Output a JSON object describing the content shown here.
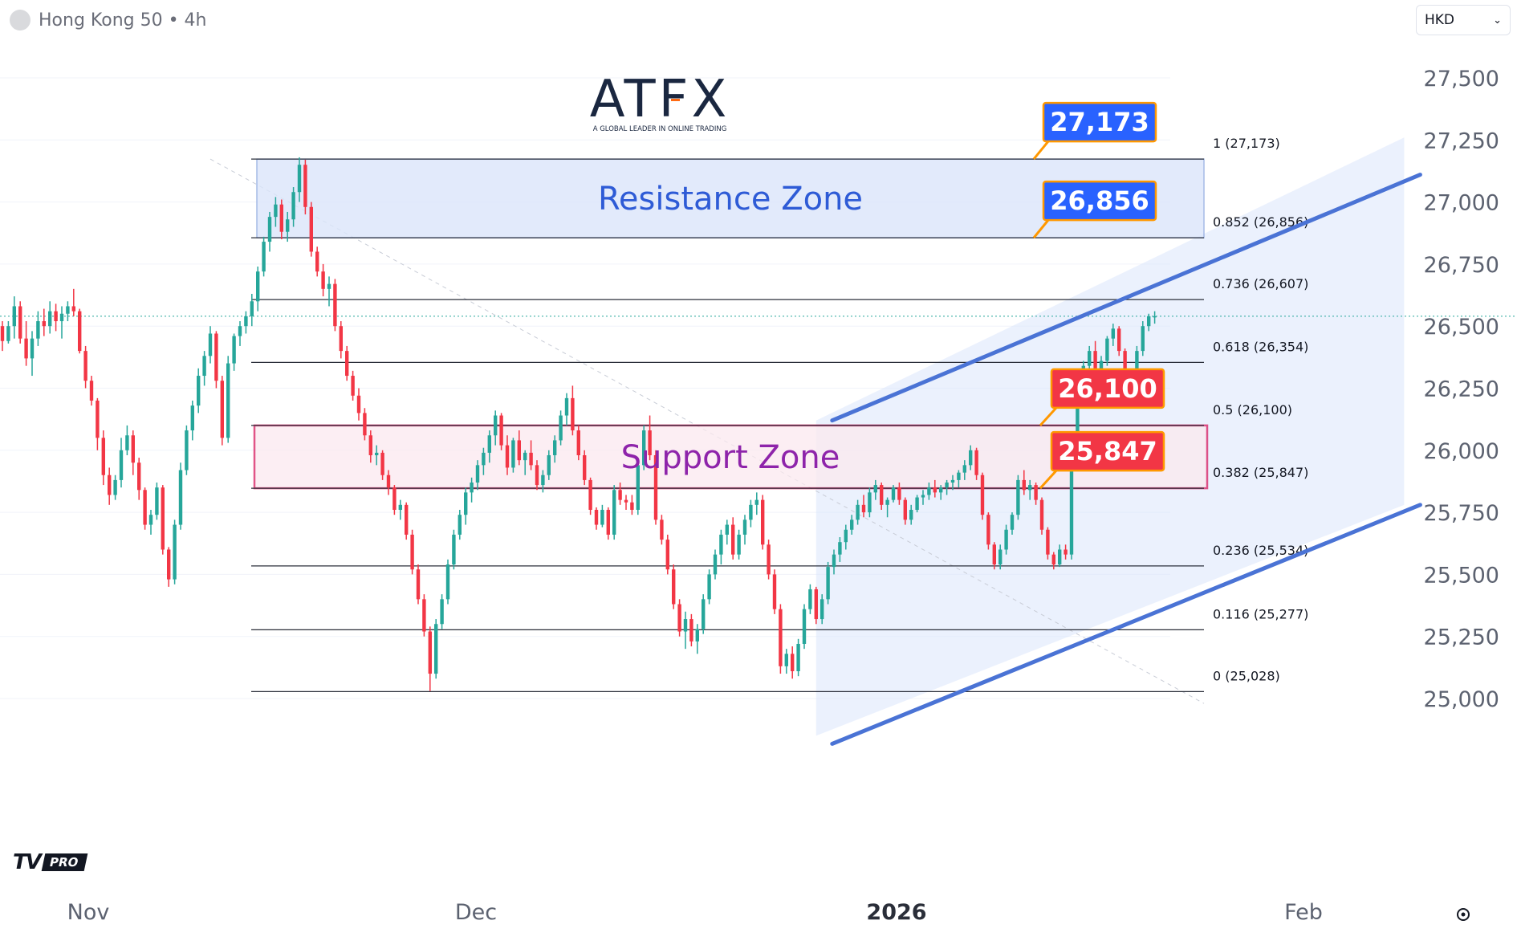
{
  "header": {
    "symbol": "Hong Kong 50 • 4h",
    "currency": "HKD"
  },
  "brand": {
    "name": "ATFX",
    "tagline": "A GLOBAL LEADER IN ONLINE TRADING",
    "badge": "PRO"
  },
  "colors": {
    "up": "#26a69a",
    "down": "#f23645",
    "channel": "#4a73d5",
    "resistance_label": "#2962ff",
    "support_label": "#f23645",
    "label_border": "#ff9800",
    "resistance_text": "#2e5bd6",
    "support_text": "#8e24aa",
    "support_border": "#d81b60"
  },
  "chart_data": {
    "type": "candlestick",
    "title": "Hong Kong 50 • 4h",
    "currency": "HKD",
    "x_ticks": [
      "Nov",
      "Dec",
      "2026",
      "Feb"
    ],
    "y_ticks": [
      "27,500",
      "27,250",
      "27,000",
      "26,750",
      "26,500",
      "26,250",
      "26,000",
      "25,750",
      "25,500",
      "25,250",
      "25,000"
    ],
    "y_tick_values": [
      27500,
      27250,
      27000,
      26750,
      26500,
      26250,
      26000,
      25750,
      25500,
      25250,
      25000
    ],
    "ylim": [
      24860,
      27660
    ],
    "grid": true,
    "last_price": 26540,
    "fibonacci": [
      {
        "label": "1 (27,173)",
        "value": 27173
      },
      {
        "label": "0.852 (26,856)",
        "value": 26856
      },
      {
        "label": "0.736 (26,607)",
        "value": 26607
      },
      {
        "label": "0.618 (26,354)",
        "value": 26354
      },
      {
        "label": "0.5 (26,100)",
        "value": 26100
      },
      {
        "label": "0.382 (25,847)",
        "value": 25847
      },
      {
        "label": "0.236 (25,534)",
        "value": 25534
      },
      {
        "label": "0.116 (25,277)",
        "value": 25277
      },
      {
        "label": "0 (25,028)",
        "value": 25028
      }
    ],
    "zones": [
      {
        "name": "Resistance Zone",
        "top": 27173,
        "bottom": 26856
      },
      {
        "name": "Support Zone",
        "top": 26100,
        "bottom": 25847
      }
    ],
    "price_labels": [
      {
        "text": "27,173",
        "value": 27173,
        "kind": "resistance"
      },
      {
        "text": "26,856",
        "value": 26856,
        "kind": "resistance"
      },
      {
        "text": "26,100",
        "value": 26100,
        "kind": "support"
      },
      {
        "text": "25,847",
        "value": 25847,
        "kind": "support"
      }
    ],
    "channel": {
      "upper": [
        {
          "bar": 137,
          "value": 26120
        },
        {
          "bar": 236,
          "value": 27110
        }
      ],
      "lower": [
        {
          "bar": 137,
          "value": 24850
        },
        {
          "bar": 236,
          "value": 25780
        }
      ]
    },
    "candles": [
      [
        26500,
        26520,
        26400,
        26440
      ],
      [
        26440,
        26520,
        26430,
        26500
      ],
      [
        26500,
        26620,
        26450,
        26580
      ],
      [
        26580,
        26600,
        26430,
        26450
      ],
      [
        26450,
        26520,
        26340,
        26370
      ],
      [
        26370,
        26480,
        26300,
        26450
      ],
      [
        26450,
        26560,
        26420,
        26520
      ],
      [
        26520,
        26570,
        26460,
        26500
      ],
      [
        26500,
        26600,
        26470,
        26560
      ],
      [
        26560,
        26590,
        26480,
        26520
      ],
      [
        26520,
        26580,
        26450,
        26550
      ],
      [
        26550,
        26600,
        26520,
        26580
      ],
      [
        26580,
        26650,
        26540,
        26560
      ],
      [
        26560,
        26570,
        26390,
        26400
      ],
      [
        26400,
        26420,
        26250,
        26280
      ],
      [
        26280,
        26300,
        26180,
        26200
      ],
      [
        26200,
        26210,
        26000,
        26050
      ],
      [
        26050,
        26080,
        25860,
        25900
      ],
      [
        25900,
        25930,
        25780,
        25820
      ],
      [
        25820,
        25900,
        25800,
        25880
      ],
      [
        25880,
        26050,
        25850,
        26000
      ],
      [
        26000,
        26100,
        25980,
        26060
      ],
      [
        26060,
        26080,
        25900,
        25950
      ],
      [
        25950,
        25970,
        25800,
        25840
      ],
      [
        25840,
        25850,
        25680,
        25700
      ],
      [
        25700,
        25760,
        25660,
        25740
      ],
      [
        25740,
        25870,
        25720,
        25850
      ],
      [
        25850,
        25860,
        25580,
        25600
      ],
      [
        25600,
        25610,
        25450,
        25480
      ],
      [
        25480,
        25720,
        25460,
        25700
      ],
      [
        25700,
        25950,
        25680,
        25920
      ],
      [
        25920,
        26100,
        25900,
        26080
      ],
      [
        26080,
        26200,
        26040,
        26180
      ],
      [
        26180,
        26330,
        26150,
        26300
      ],
      [
        26300,
        26400,
        26260,
        26380
      ],
      [
        26380,
        26500,
        26350,
        26470
      ],
      [
        26470,
        26480,
        26250,
        26280
      ],
      [
        26280,
        26300,
        26020,
        26050
      ],
      [
        26050,
        26380,
        26030,
        26350
      ],
      [
        26350,
        26470,
        26320,
        26460
      ],
      [
        26460,
        26520,
        26420,
        26500
      ],
      [
        26500,
        26560,
        26470,
        26540
      ],
      [
        26540,
        26630,
        26500,
        26600
      ],
      [
        26600,
        26740,
        26560,
        26720
      ],
      [
        26720,
        26860,
        26700,
        26840
      ],
      [
        26840,
        26960,
        26800,
        26940
      ],
      [
        26940,
        27020,
        26900,
        26990
      ],
      [
        26990,
        27010,
        26850,
        26880
      ],
      [
        26880,
        26960,
        26840,
        26930
      ],
      [
        26930,
        27060,
        26900,
        27040
      ],
      [
        27040,
        27180,
        27000,
        27150
      ],
      [
        27150,
        27170,
        26950,
        26980
      ],
      [
        26980,
        27000,
        26780,
        26800
      ],
      [
        26800,
        26820,
        26700,
        26720
      ],
      [
        26720,
        26750,
        26620,
        26650
      ],
      [
        26650,
        26700,
        26580,
        26670
      ],
      [
        26670,
        26690,
        26480,
        26500
      ],
      [
        26500,
        26520,
        26370,
        26400
      ],
      [
        26400,
        26420,
        26280,
        26300
      ],
      [
        26300,
        26320,
        26200,
        26220
      ],
      [
        26220,
        26250,
        26120,
        26150
      ],
      [
        26150,
        26170,
        26040,
        26060
      ],
      [
        26060,
        26080,
        25950,
        25980
      ],
      [
        25980,
        26020,
        25940,
        25990
      ],
      [
        25990,
        26000,
        25880,
        25900
      ],
      [
        25900,
        25920,
        25820,
        25850
      ],
      [
        25850,
        25860,
        25740,
        25760
      ],
      [
        25760,
        25800,
        25720,
        25780
      ],
      [
        25780,
        25790,
        25640,
        25660
      ],
      [
        25660,
        25680,
        25500,
        25520
      ],
      [
        25520,
        25540,
        25380,
        25400
      ],
      [
        25400,
        25420,
        25250,
        25270
      ],
      [
        25270,
        25290,
        25030,
        25100
      ],
      [
        25100,
        25320,
        25080,
        25300
      ],
      [
        25300,
        25420,
        25280,
        25400
      ],
      [
        25400,
        25560,
        25380,
        25540
      ],
      [
        25540,
        25680,
        25520,
        25660
      ],
      [
        25660,
        25760,
        25640,
        25740
      ],
      [
        25740,
        25850,
        25700,
        25830
      ],
      [
        25830,
        25890,
        25790,
        25870
      ],
      [
        25870,
        25960,
        25840,
        25940
      ],
      [
        25940,
        26010,
        25900,
        25990
      ],
      [
        25990,
        26080,
        25950,
        26060
      ],
      [
        26060,
        26160,
        26020,
        26140
      ],
      [
        26140,
        26150,
        26000,
        26020
      ],
      [
        26020,
        26060,
        25900,
        25930
      ],
      [
        25930,
        26050,
        25910,
        26040
      ],
      [
        26040,
        26080,
        25940,
        25960
      ],
      [
        25960,
        26000,
        25900,
        25990
      ],
      [
        25990,
        26040,
        25920,
        25940
      ],
      [
        25940,
        25960,
        25840,
        25860
      ],
      [
        25860,
        25920,
        25830,
        25900
      ],
      [
        25900,
        26000,
        25880,
        25980
      ],
      [
        25980,
        26060,
        25950,
        26040
      ],
      [
        26040,
        26160,
        26020,
        26140
      ],
      [
        26140,
        26230,
        26100,
        26210
      ],
      [
        26210,
        26260,
        26060,
        26080
      ],
      [
        26080,
        26100,
        25960,
        25980
      ],
      [
        25980,
        26000,
        25860,
        25880
      ],
      [
        25880,
        25890,
        25740,
        25760
      ],
      [
        25760,
        25770,
        25680,
        25700
      ],
      [
        25700,
        25780,
        25690,
        25760
      ],
      [
        25760,
        25770,
        25640,
        25660
      ],
      [
        25660,
        25860,
        25640,
        25840
      ],
      [
        25840,
        25870,
        25780,
        25800
      ],
      [
        25800,
        25820,
        25760,
        25790
      ],
      [
        25790,
        25820,
        25740,
        25760
      ],
      [
        25760,
        25960,
        25740,
        25940
      ],
      [
        25940,
        26100,
        25920,
        26080
      ],
      [
        26080,
        26140,
        25960,
        25980
      ],
      [
        25980,
        26000,
        25700,
        25720
      ],
      [
        25720,
        25740,
        25620,
        25640
      ],
      [
        25640,
        25660,
        25500,
        25520
      ],
      [
        25520,
        25540,
        25360,
        25380
      ],
      [
        25380,
        25400,
        25250,
        25270
      ],
      [
        25270,
        25350,
        25200,
        25320
      ],
      [
        25320,
        25340,
        25210,
        25230
      ],
      [
        25230,
        25300,
        25180,
        25280
      ],
      [
        25280,
        25420,
        25260,
        25400
      ],
      [
        25400,
        25520,
        25380,
        25500
      ],
      [
        25500,
        25600,
        25480,
        25580
      ],
      [
        25580,
        25680,
        25540,
        25660
      ],
      [
        25660,
        25720,
        25620,
        25700
      ],
      [
        25700,
        25730,
        25560,
        25580
      ],
      [
        25580,
        25680,
        25560,
        25660
      ],
      [
        25660,
        25740,
        25620,
        25720
      ],
      [
        25720,
        25800,
        25690,
        25780
      ],
      [
        25780,
        25830,
        25740,
        25800
      ],
      [
        25800,
        25820,
        25600,
        25620
      ],
      [
        25620,
        25640,
        25480,
        25500
      ],
      [
        25500,
        25520,
        25340,
        25360
      ],
      [
        25360,
        25380,
        25100,
        25130
      ],
      [
        25130,
        25200,
        25100,
        25180
      ],
      [
        25180,
        25210,
        25080,
        25110
      ],
      [
        25110,
        25240,
        25090,
        25220
      ],
      [
        25220,
        25380,
        25200,
        25360
      ],
      [
        25360,
        25460,
        25340,
        25440
      ],
      [
        25440,
        25450,
        25300,
        25320
      ],
      [
        25320,
        25420,
        25300,
        25400
      ],
      [
        25400,
        25550,
        25380,
        25530
      ],
      [
        25530,
        25600,
        25500,
        25580
      ],
      [
        25580,
        25650,
        25550,
        25630
      ],
      [
        25630,
        25700,
        25600,
        25680
      ],
      [
        25680,
        25740,
        25660,
        25720
      ],
      [
        25720,
        25800,
        25700,
        25780
      ],
      [
        25780,
        25820,
        25730,
        25750
      ],
      [
        25750,
        25850,
        25730,
        25830
      ],
      [
        25830,
        25880,
        25800,
        25860
      ],
      [
        25860,
        25870,
        25760,
        25780
      ],
      [
        25780,
        25810,
        25730,
        25800
      ],
      [
        25800,
        25860,
        25790,
        25850
      ],
      [
        25850,
        25870,
        25780,
        25800
      ],
      [
        25800,
        25810,
        25700,
        25720
      ],
      [
        25720,
        25780,
        25700,
        25760
      ],
      [
        25760,
        25820,
        25750,
        25810
      ],
      [
        25810,
        25840,
        25780,
        25820
      ],
      [
        25820,
        25870,
        25800,
        25850
      ],
      [
        25850,
        25880,
        25810,
        25830
      ],
      [
        25830,
        25860,
        25800,
        25850
      ],
      [
        25850,
        25880,
        25820,
        25870
      ],
      [
        25870,
        25900,
        25840,
        25880
      ],
      [
        25880,
        25920,
        25850,
        25910
      ],
      [
        25910,
        25960,
        25880,
        25940
      ],
      [
        25940,
        26020,
        25920,
        26000
      ],
      [
        26000,
        26010,
        25880,
        25900
      ],
      [
        25900,
        25910,
        25720,
        25740
      ],
      [
        25740,
        25750,
        25600,
        25620
      ],
      [
        25620,
        25630,
        25520,
        25540
      ],
      [
        25540,
        25620,
        25520,
        25600
      ],
      [
        25600,
        25700,
        25580,
        25680
      ],
      [
        25680,
        25750,
        25660,
        25740
      ],
      [
        25740,
        25900,
        25720,
        25880
      ],
      [
        25880,
        25920,
        25820,
        25840
      ],
      [
        25840,
        25880,
        25800,
        25860
      ],
      [
        25860,
        25870,
        25780,
        25800
      ],
      [
        25800,
        25810,
        25660,
        25680
      ],
      [
        25680,
        25690,
        25560,
        25580
      ],
      [
        25580,
        25590,
        25520,
        25540
      ],
      [
        25540,
        25620,
        25530,
        25600
      ],
      [
        25600,
        25620,
        25560,
        25580
      ],
      [
        25580,
        26000,
        25560,
        25980
      ],
      [
        25980,
        26300,
        25960,
        26280
      ],
      [
        26280,
        26360,
        26220,
        26340
      ],
      [
        26340,
        26420,
        26300,
        26400
      ],
      [
        26400,
        26440,
        26280,
        26300
      ],
      [
        26300,
        26380,
        26280,
        26360
      ],
      [
        26360,
        26460,
        26340,
        26450
      ],
      [
        26450,
        26510,
        26420,
        26490
      ],
      [
        26490,
        26500,
        26380,
        26400
      ],
      [
        26400,
        26410,
        26230,
        26250
      ],
      [
        26250,
        26270,
        26200,
        26230
      ],
      [
        26230,
        26420,
        26220,
        26400
      ],
      [
        26400,
        26520,
        26380,
        26500
      ],
      [
        26500,
        26550,
        26480,
        26540
      ],
      [
        26540,
        26560,
        26510,
        26540
      ]
    ]
  }
}
